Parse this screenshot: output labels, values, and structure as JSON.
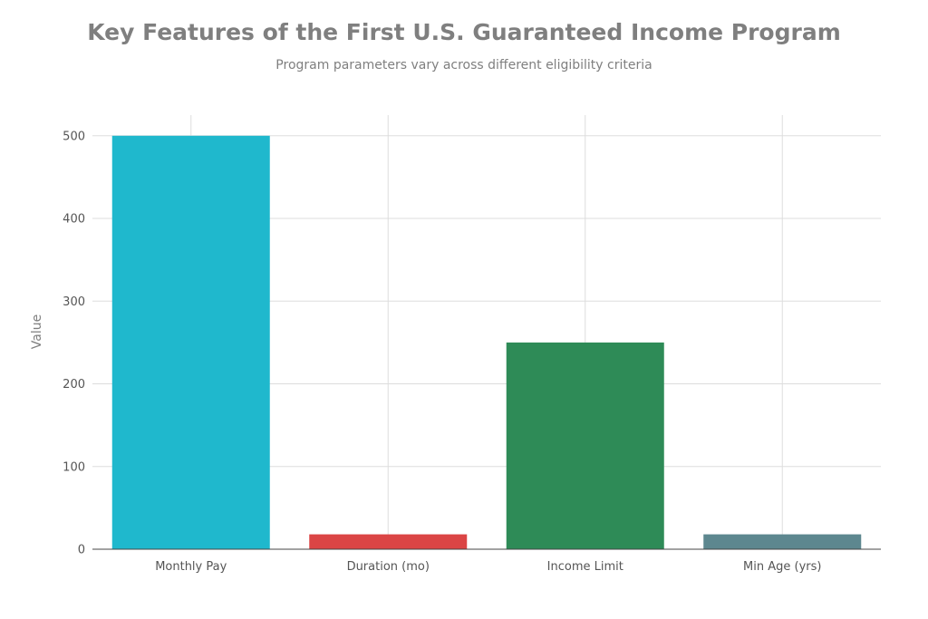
{
  "chart_data": {
    "type": "bar",
    "title": "Key Features of the First U.S. Guaranteed Income Program",
    "subtitle": "Program parameters vary across different eligibility criteria",
    "xlabel": "",
    "ylabel": "Value",
    "categories": [
      "Monthly Pay",
      "Duration (mo)",
      "Income Limit",
      "Min Age (yrs)"
    ],
    "values": [
      500,
      18,
      250,
      18
    ],
    "colors": [
      "#1fb8cd",
      "#db4545",
      "#2e8b57",
      "#5d878f"
    ],
    "ylim": [
      0,
      525
    ],
    "yticks": [
      0,
      100,
      200,
      300,
      400,
      500
    ],
    "grid": true,
    "legend": "none"
  }
}
